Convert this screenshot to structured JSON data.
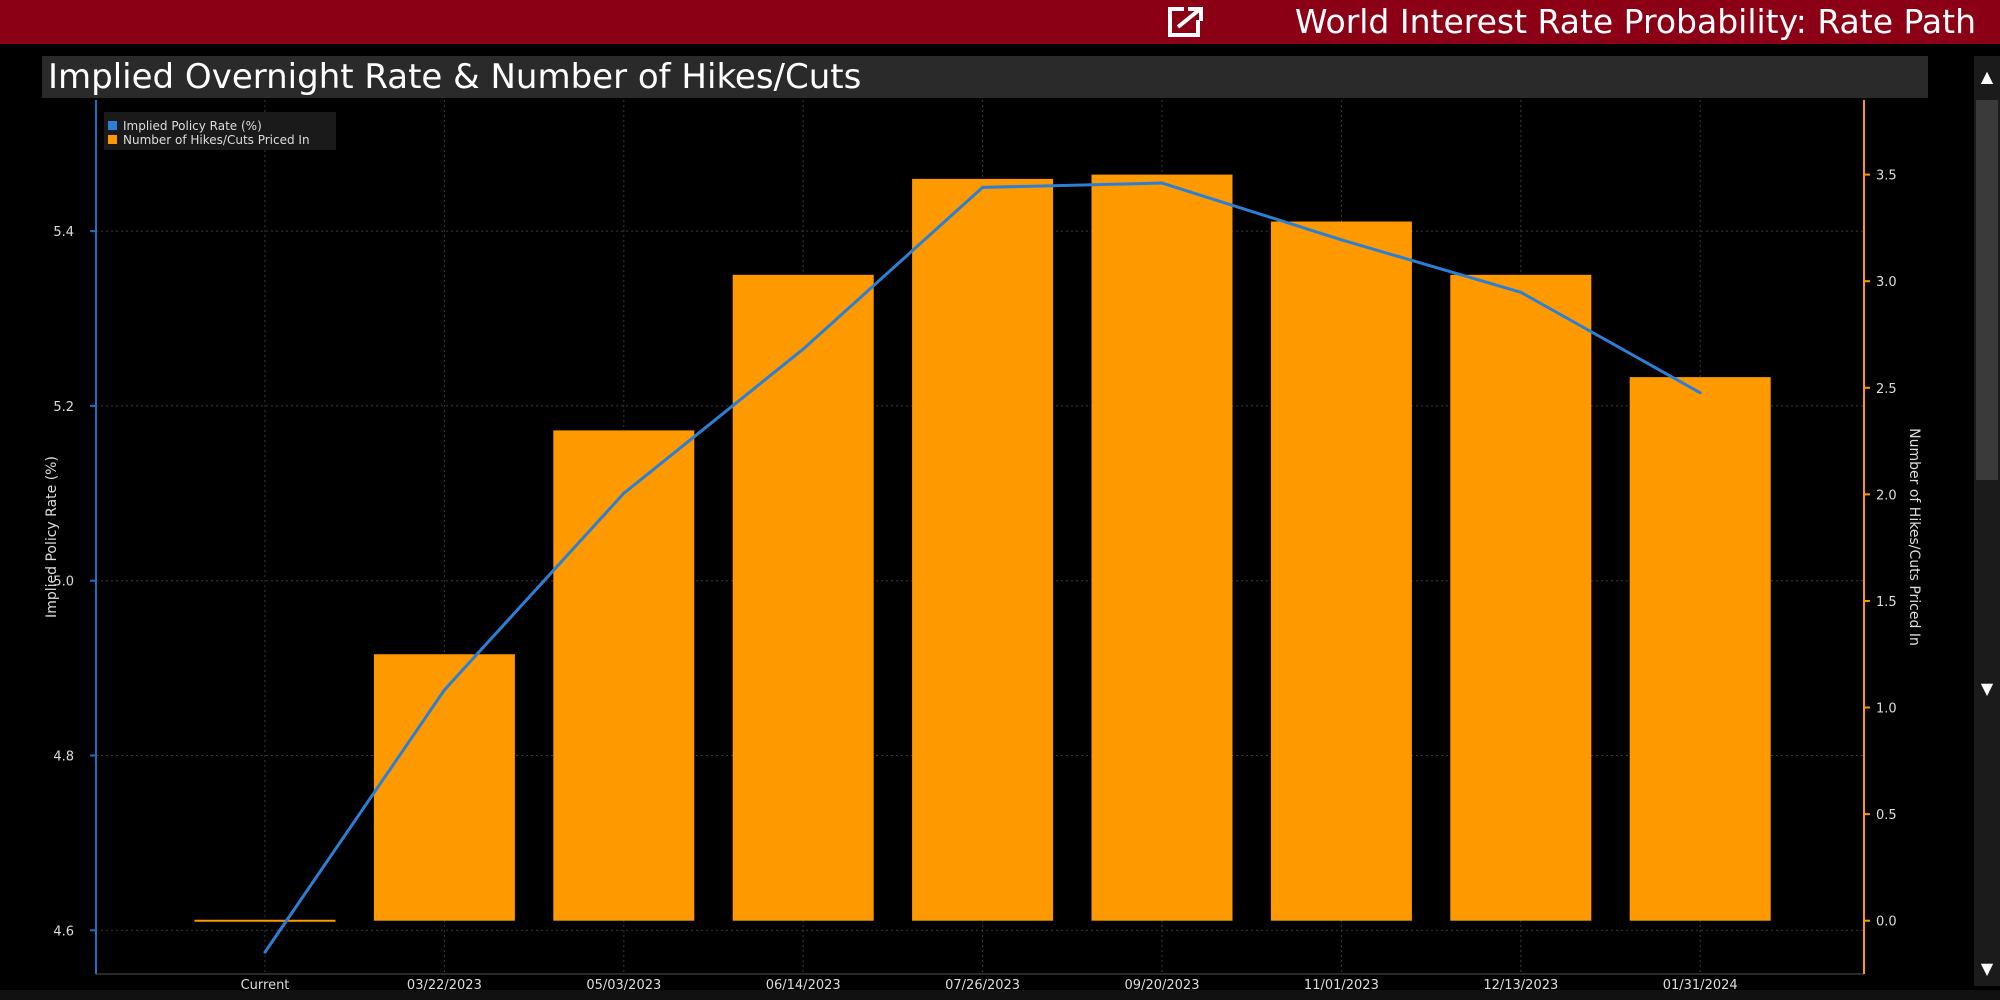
{
  "header": {
    "app_title": "World Interest Rate Probability: Rate Path",
    "export_icon": "export-icon"
  },
  "chart_title": "Implied Overnight Rate & Number of Hikes/Cuts",
  "colors": {
    "header_bg": "#8c0016",
    "line": "#2b7fd4",
    "bar": "#ff9900",
    "grid": "#3a3a3a",
    "axis": "#ff9900"
  },
  "chart_data": {
    "type": "bar",
    "categories": [
      "Current",
      "03/22/2023",
      "05/03/2023",
      "06/14/2023",
      "07/26/2023",
      "09/20/2023",
      "11/01/2023",
      "12/13/2023",
      "01/31/2024"
    ],
    "series": [
      {
        "name": "Implied Policy Rate (%)",
        "type": "line",
        "axis": "left",
        "values": [
          4.575,
          4.875,
          5.1,
          5.265,
          5.45,
          5.455,
          5.39,
          5.33,
          5.215
        ]
      },
      {
        "name": "Number of Hikes/Cuts Priced In",
        "type": "bar",
        "axis": "right",
        "values": [
          0,
          1.25,
          2.3,
          3.03,
          3.48,
          3.5,
          3.28,
          3.03,
          2.55
        ]
      }
    ],
    "ylabel": "Implied Policy Rate (%)",
    "y2label": "Number of Hikes/Cuts Priced In",
    "ylim": [
      4.55,
      5.55
    ],
    "y2lim": [
      -0.25,
      3.85
    ],
    "yticks": [
      "4.6",
      "4.8",
      "5.0",
      "5.2",
      "5.4"
    ],
    "y2ticks": [
      "0.0",
      "0.5",
      "1.0",
      "1.5",
      "2.0",
      "2.5",
      "3.0",
      "3.5"
    ],
    "grid": true,
    "legend": "top-left"
  },
  "scrollbar": {
    "up_icon": "arrow-up-icon",
    "down_icon": "arrow-down-icon"
  }
}
